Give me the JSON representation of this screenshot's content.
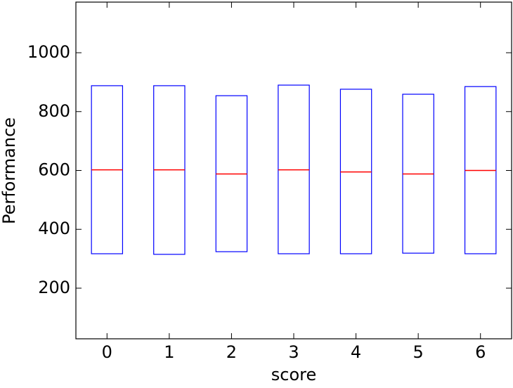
{
  "chart_data": {
    "type": "box",
    "x_label": "score",
    "y_label": "Performance",
    "categories": [
      "0",
      "1",
      "2",
      "3",
      "4",
      "5",
      "6"
    ],
    "q1": [
      317,
      315,
      324,
      317,
      317,
      319,
      317
    ],
    "median": [
      602,
      602,
      588,
      602,
      595,
      588,
      600
    ],
    "q3": [
      888,
      888,
      854,
      890,
      876,
      859,
      885
    ],
    "box_color": "#0000ff",
    "median_color": "#ff0000",
    "ylim": [
      28,
      1172
    ],
    "yticks": [
      200,
      400,
      600,
      800,
      1000
    ],
    "grid": false
  }
}
